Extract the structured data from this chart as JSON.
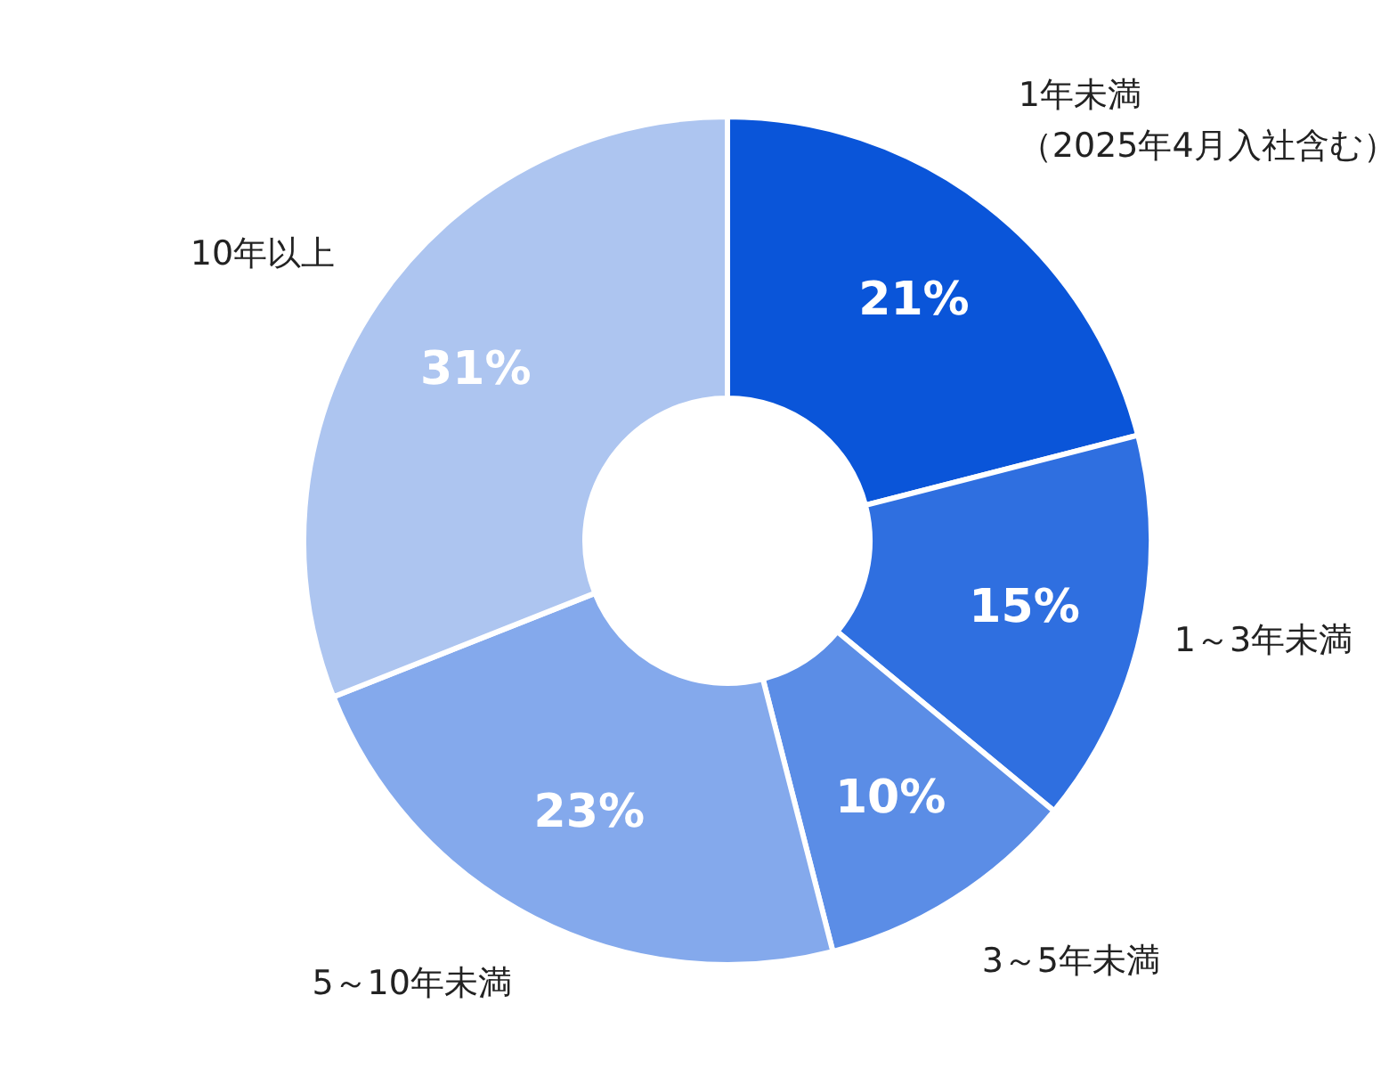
{
  "chart_data": {
    "type": "donut",
    "categories": [
      "1年未満（2025年4月入社含む）",
      "1～3年未満",
      "3～5年未満",
      "5～10年未満",
      "10年以上"
    ],
    "values": [
      21,
      15,
      10,
      23,
      31
    ],
    "colors": [
      "#0a55d9",
      "#2f6fe0",
      "#5b8de6",
      "#84a9ec",
      "#adc5f0"
    ],
    "value_labels": [
      "21%",
      "15%",
      "10%",
      "23%",
      "31%"
    ]
  }
}
